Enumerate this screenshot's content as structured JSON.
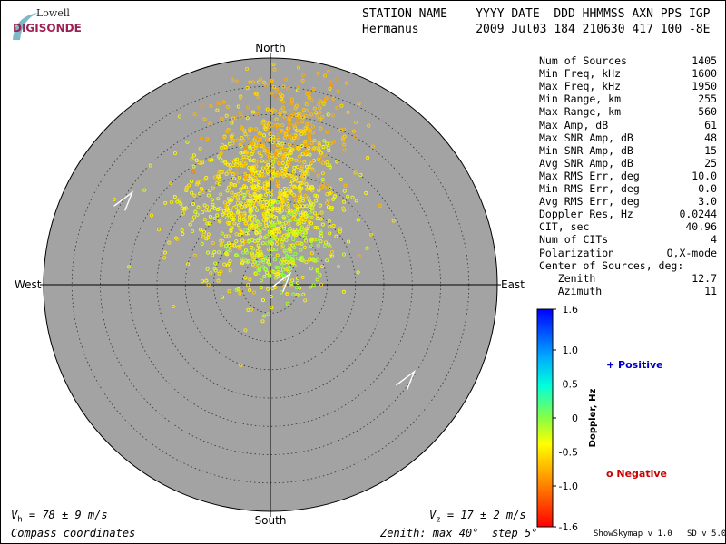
{
  "logo": {
    "top_text": "Lowell",
    "bottom_text": "DIGISONDE"
  },
  "header": {
    "row1": "STATION NAME    YYYY DATE  DDD HHMMSS AXN PPS IGP",
    "row2": "Hermanus        2009 Jul03 184 210630 417 100 -8E"
  },
  "compass": {
    "north": "North",
    "south": "South",
    "east": "East",
    "west": "West"
  },
  "stats": [
    {
      "label": "Num of Sources",
      "value": "1405"
    },
    {
      "label": "Min Freq, kHz",
      "value": "1600"
    },
    {
      "label": "Max Freq, kHz",
      "value": "1950"
    },
    {
      "label": "Min Range, km",
      "value": "255"
    },
    {
      "label": "Max Range, km",
      "value": "560"
    },
    {
      "label": "Max Amp, dB",
      "value": "61"
    },
    {
      "label": "Max SNR Amp, dB",
      "value": "48"
    },
    {
      "label": "Min SNR Amp, dB",
      "value": "15"
    },
    {
      "label": "Avg SNR Amp, dB",
      "value": "25"
    },
    {
      "label": "Max RMS Err, deg",
      "value": "10.0"
    },
    {
      "label": "Min RMS Err, deg",
      "value": "0.0"
    },
    {
      "label": "Avg RMS Err, deg",
      "value": "3.0"
    },
    {
      "label": "Doppler Res, Hz",
      "value": "0.0244"
    },
    {
      "label": "CIT, sec",
      "value": "40.96"
    },
    {
      "label": "Num of CITs",
      "value": "4"
    },
    {
      "label": "Polarization",
      "value": "O,X-mode"
    },
    {
      "label": "Center of Sources, deg:",
      "value": ""
    },
    {
      "label": "   Zenith",
      "value": "12.7"
    },
    {
      "label": "   Azimuth",
      "value": "11"
    }
  ],
  "footer": {
    "vh_label": "V",
    "vh_sub": "h",
    "vh_value": " = 78 ± 9 m/s",
    "vz_label": "V",
    "vz_sub": "z",
    "vz_value": " = 17 ± 2 m/s",
    "coords": "Compass coordinates",
    "zenith": "Zenith: max 40°  step 5°",
    "credit": "ShowSkymap v 1.0   SD v 5.0"
  },
  "legend": {
    "positive": "+ Positive",
    "negative": "o Negative"
  },
  "colors": {
    "background": "#a3a3a3",
    "positive_mark": "#0000cc",
    "negative_mark": "#cc0000"
  },
  "chart_data": {
    "type": "scatter",
    "coordinate_system": "polar skymap (zenith angle, azimuth)",
    "zenith_max_deg": 40,
    "zenith_step_deg": 5,
    "colorbar": {
      "label": "Doppler, Hz",
      "range": [
        -1.6,
        1.6
      ],
      "ticks": [
        "1.6",
        "1.0",
        "0.5",
        "0",
        "-0.5",
        "-1.0",
        "-1.6"
      ]
    },
    "velocity_arrows": [
      {
        "zenith_deg": 30,
        "azimuth_deg": 300
      },
      {
        "zenith_deg": 2,
        "azimuth_deg": 70
      },
      {
        "zenith_deg": 29,
        "azimuth_deg": 125
      }
    ],
    "source_clusters": [
      {
        "zenith_center_deg": 14,
        "azimuth_center_deg": 355,
        "spread_deg": 7,
        "count": 900,
        "doppler_mean": -0.45,
        "doppler_sd": 0.1
      },
      {
        "zenith_center_deg": 27,
        "azimuth_center_deg": 5,
        "spread_deg": 6,
        "count": 350,
        "doppler_mean": -0.7,
        "doppler_sd": 0.1
      },
      {
        "zenith_center_deg": 6,
        "azimuth_center_deg": 20,
        "spread_deg": 4,
        "count": 155,
        "doppler_mean": -0.1,
        "doppler_sd": 0.08
      }
    ]
  }
}
